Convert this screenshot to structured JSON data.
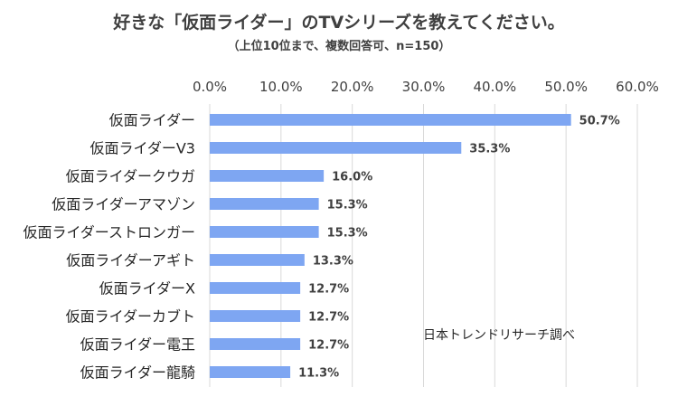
{
  "chart_data": {
    "type": "bar",
    "orientation": "horizontal",
    "title": "好きな「仮面ライダー」のTVシリーズを教えてください。",
    "subtitle": "（上位10位まで、複数回答可、n=150）",
    "categories": [
      "仮面ライダー",
      "仮面ライダーV3",
      "仮面ライダークウガ",
      "仮面ライダーアマゾン",
      "仮面ライダーストロンガー",
      "仮面ライダーアギト",
      "仮面ライダーX",
      "仮面ライダーカブト",
      "仮面ライダー電王",
      "仮面ライダー龍騎"
    ],
    "values": [
      50.7,
      35.3,
      16.0,
      15.3,
      15.3,
      13.3,
      12.7,
      12.7,
      12.7,
      11.3
    ],
    "value_labels": [
      "50.7%",
      "35.3%",
      "16.0%",
      "15.3%",
      "15.3%",
      "13.3%",
      "12.7%",
      "12.7%",
      "12.7%",
      "11.3%"
    ],
    "xlim": [
      0,
      60
    ],
    "xticks": [
      0,
      10,
      20,
      30,
      40,
      50,
      60
    ],
    "xtick_labels": [
      "0.0%",
      "10.0%",
      "20.0%",
      "30.0%",
      "40.0%",
      "50.0%",
      "60.0%"
    ],
    "axis_position": "top",
    "grid": true,
    "bar_color": "#7EA6F2",
    "grid_color": "#D9D9D9",
    "annotation": "日本トレンドリサーチ調べ"
  }
}
